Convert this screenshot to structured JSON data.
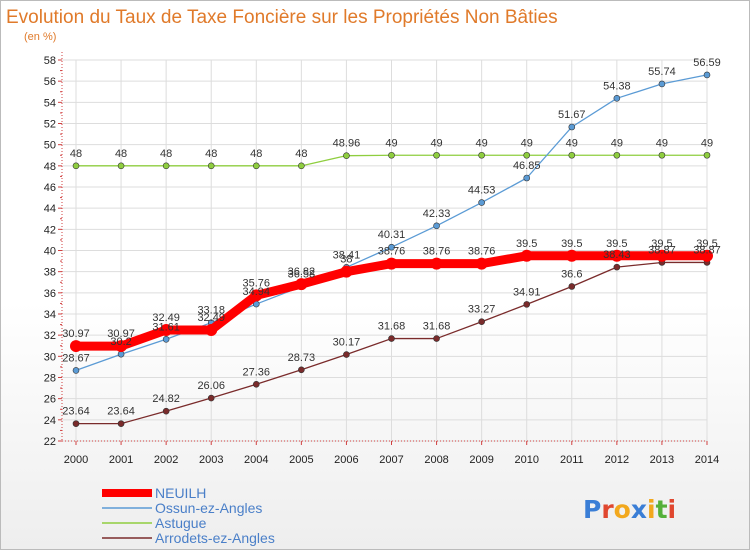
{
  "chart_data": {
    "type": "line",
    "title": "Evolution du Taux de Taxe Foncière sur les Propriétés Non Bâties",
    "subtitle": "(en %)",
    "xlabel": "",
    "ylabel": "",
    "x": [
      "2000",
      "2001",
      "2002",
      "2003",
      "2004",
      "2005",
      "2006",
      "2007",
      "2008",
      "2009",
      "2010",
      "2011",
      "2012",
      "2013",
      "2014"
    ],
    "ylim": [
      22,
      58
    ],
    "yticks": [
      22,
      24,
      26,
      28,
      30,
      32,
      34,
      36,
      38,
      40,
      42,
      44,
      46,
      48,
      50,
      52,
      54,
      56,
      58
    ],
    "grid": true,
    "legend_position": "bottom-left",
    "series": [
      {
        "name": "NEUILH",
        "color": "#ff0000",
        "values": [
          30.97,
          30.97,
          32.49,
          32.49,
          35.76,
          36.82,
          38.0,
          38.76,
          38.76,
          38.76,
          39.5,
          39.5,
          39.5,
          39.5,
          39.5
        ],
        "labels": [
          "30.97",
          "30.97",
          "32.49",
          "32.49",
          "35.76",
          "36.82",
          "38",
          "38.76",
          "38.76",
          "38.76",
          "39.5",
          "39.5",
          "39.5",
          "39.5",
          "39.5"
        ]
      },
      {
        "name": "Ossun-ez-Angles",
        "color": "#5b9bd5",
        "values": [
          28.67,
          30.2,
          31.61,
          33.18,
          34.94,
          36.58,
          38.41,
          40.31,
          42.33,
          44.53,
          46.85,
          51.67,
          54.38,
          55.74,
          56.59
        ],
        "labels": [
          "28.67",
          "30.2",
          "31.61",
          "33.18",
          "34.94",
          "36.58",
          "38.41",
          "40.31",
          "42.33",
          "44.53",
          "46.85",
          "51.67",
          "54.38",
          "55.74",
          "56.59"
        ]
      },
      {
        "name": "Astugue",
        "color": "#8fce3f",
        "values": [
          48,
          48,
          48,
          48,
          48,
          48,
          48.96,
          49,
          49,
          49,
          49,
          49,
          49,
          49,
          49
        ],
        "labels": [
          "48",
          "48",
          "48",
          "48",
          "48",
          "48",
          "48.96",
          "49",
          "49",
          "49",
          "49",
          "49",
          "49",
          "49",
          "49"
        ]
      },
      {
        "name": "Arrodets-ez-Angles",
        "color": "#7a2b2b",
        "values": [
          23.64,
          23.64,
          24.82,
          26.06,
          27.36,
          28.73,
          30.17,
          31.68,
          31.68,
          33.27,
          34.91,
          36.6,
          38.43,
          38.87,
          38.87
        ],
        "labels": [
          "23.64",
          "23.64",
          "24.82",
          "26.06",
          "27.36",
          "28.73",
          "30.17",
          "31.68",
          "31.68",
          "33.27",
          "34.91",
          "36.6",
          "38.43",
          "38.87",
          "38.87"
        ]
      }
    ]
  },
  "logo": {
    "text": "Proxiti"
  }
}
